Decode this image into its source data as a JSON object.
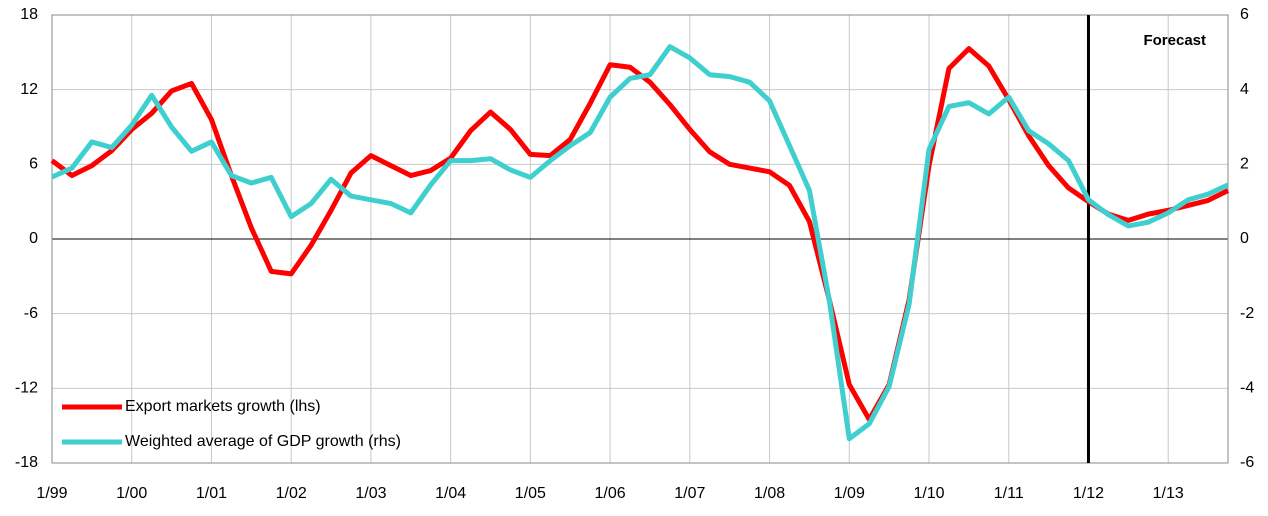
{
  "chart_data": {
    "type": "line",
    "categories": [
      "1/99",
      null,
      null,
      null,
      "1/00",
      null,
      null,
      null,
      "1/01",
      null,
      null,
      null,
      "1/02",
      null,
      null,
      null,
      "1/03",
      null,
      null,
      null,
      "1/04",
      null,
      null,
      null,
      "1/05",
      null,
      null,
      null,
      "1/06",
      null,
      null,
      null,
      "1/07",
      null,
      null,
      null,
      "1/08",
      null,
      null,
      null,
      "1/09",
      null,
      null,
      null,
      "1/10",
      null,
      null,
      null,
      "1/11",
      null,
      null,
      null,
      "1/12",
      null,
      null,
      null,
      "1/13",
      null,
      null,
      null
    ],
    "series": [
      {
        "name": "Export markets growth (lhs)",
        "color": "#ff0000",
        "axis": "y",
        "values": [
          6.3,
          5.1,
          5.9,
          7.1,
          8.8,
          10.1,
          11.9,
          12.5,
          9.6,
          5.1,
          0.9,
          -2.6,
          -2.8,
          -0.5,
          2.3,
          5.3,
          6.7,
          5.9,
          5.1,
          5.5,
          6.5,
          8.7,
          10.2,
          8.8,
          6.8,
          6.7,
          8.0,
          10.9,
          14.0,
          13.8,
          12.6,
          10.8,
          8.8,
          7.0,
          6.0,
          5.7,
          5.4,
          4.3,
          1.4,
          -4.9,
          -11.7,
          -14.5,
          -11.7,
          -4.9,
          5.9,
          13.7,
          15.3,
          13.9,
          11.2,
          8.3,
          5.9,
          4.1,
          3.0,
          2.0,
          1.5,
          2.0,
          2.3,
          2.7,
          3.1,
          3.9
        ]
      },
      {
        "name": "Weighted average of GDP growth (rhs)",
        "color": "#3fcfcf",
        "axis": "y2",
        "values": [
          1.66,
          1.9,
          2.6,
          2.45,
          3.05,
          3.85,
          3.0,
          2.35,
          2.6,
          1.7,
          1.5,
          1.65,
          0.6,
          0.95,
          1.6,
          1.15,
          1.05,
          0.95,
          0.7,
          1.45,
          2.1,
          2.1,
          2.15,
          1.85,
          1.65,
          2.1,
          2.5,
          2.85,
          3.8,
          4.3,
          4.4,
          5.15,
          4.85,
          4.4,
          4.35,
          4.2,
          3.7,
          2.5,
          1.3,
          -1.65,
          -5.35,
          -4.95,
          -3.95,
          -1.75,
          2.4,
          3.55,
          3.65,
          3.35,
          3.8,
          2.9,
          2.55,
          2.1,
          1.05,
          0.65,
          0.35,
          0.45,
          0.7,
          1.05,
          1.2,
          1.45
        ]
      }
    ],
    "ylim": [
      -18,
      18
    ],
    "yticks": [
      -18,
      -12,
      -6,
      0,
      6,
      12,
      18
    ],
    "y2lim": [
      -6,
      6
    ],
    "y2ticks": [
      -6,
      -4,
      -2,
      0,
      2,
      4,
      6
    ],
    "grid": true,
    "legend": "lower left",
    "annotations": [
      {
        "text": "Forecast",
        "at": "1/12"
      }
    ]
  }
}
